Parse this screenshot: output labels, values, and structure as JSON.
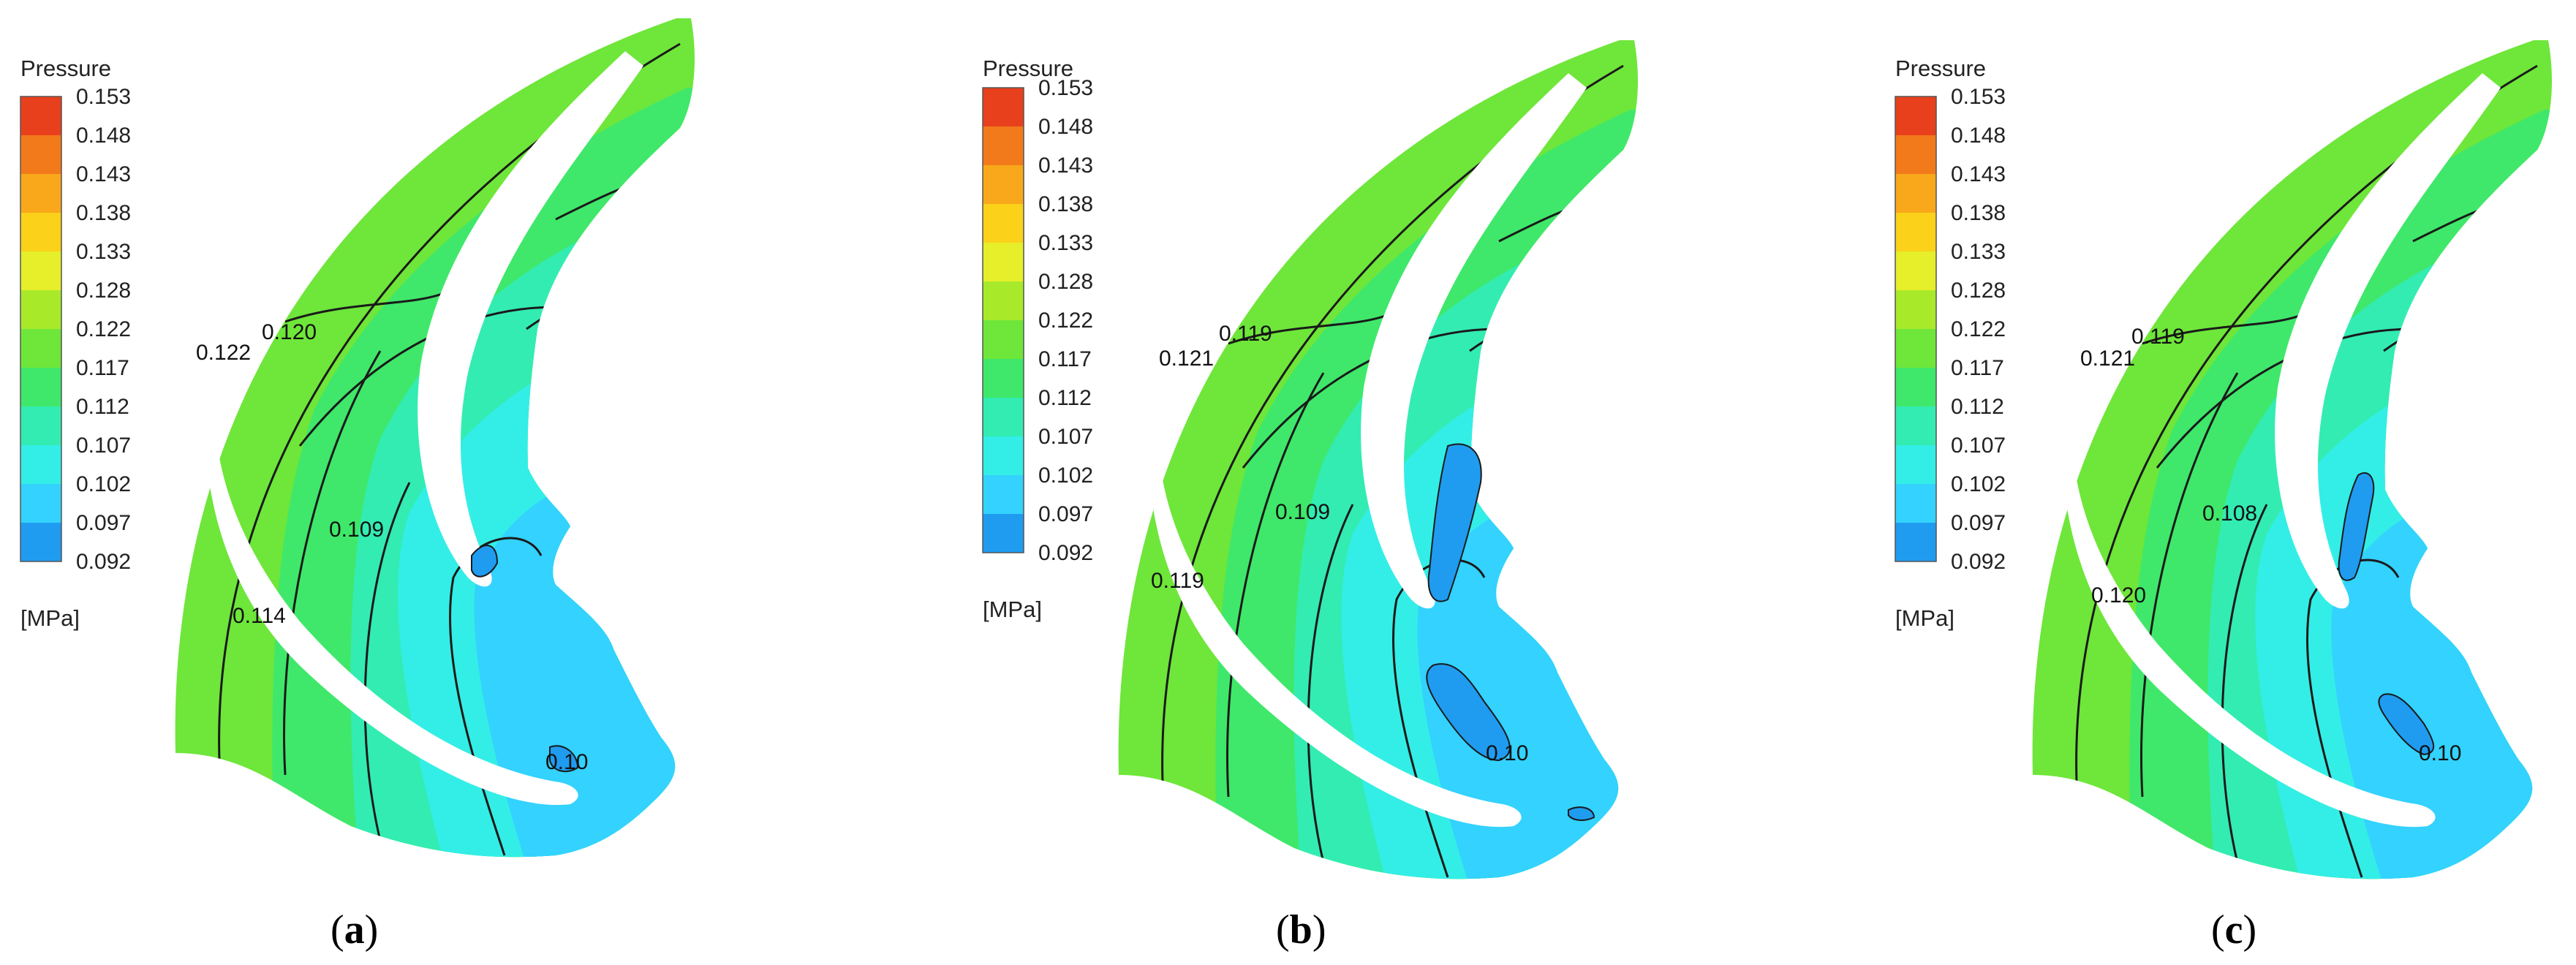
{
  "legend": {
    "title": "Pressure",
    "unit": "[MPa]",
    "ticks": [
      "0.153",
      "0.148",
      "0.143",
      "0.138",
      "0.133",
      "0.128",
      "0.122",
      "0.117",
      "0.112",
      "0.107",
      "0.102",
      "0.097",
      "0.092"
    ],
    "colors": [
      "#e8401c",
      "#f27a1a",
      "#f8a81a",
      "#fbd11a",
      "#e6ef2a",
      "#a8ea2a",
      "#6fe63a",
      "#3fe86a",
      "#33ecb2",
      "#33eee6",
      "#33d2ff",
      "#1f9cf0",
      "#1848ee"
    ]
  },
  "panels": [
    {
      "caption": {
        "open": "(",
        "letter": "a",
        "close": ")"
      },
      "labels": [
        "0.122",
        "0.120",
        "0.109",
        "0.114",
        "0.10"
      ]
    },
    {
      "caption": {
        "open": "(",
        "letter": "b",
        "close": ")"
      },
      "labels": [
        "0.121",
        "0.119",
        "0.109",
        "0.119",
        "0.10"
      ]
    },
    {
      "caption": {
        "open": "(",
        "letter": "c",
        "close": ")"
      },
      "labels": [
        "0.121",
        "0.119",
        "0.108",
        "0.120",
        "0.10"
      ]
    }
  ]
}
